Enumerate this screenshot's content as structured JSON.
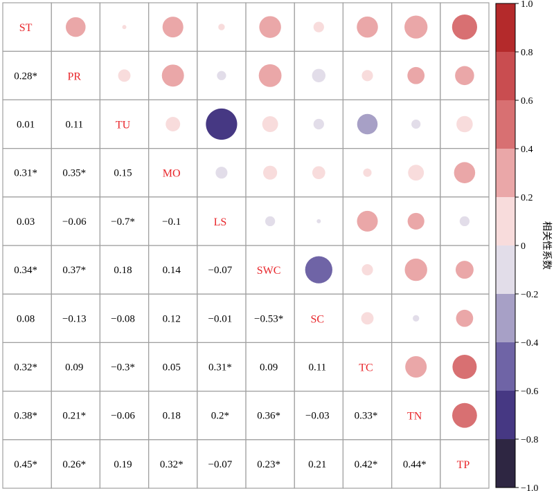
{
  "chart_data": {
    "type": "heatmap",
    "variables": [
      "ST",
      "PR",
      "TU",
      "MO",
      "LS",
      "SWC",
      "SC",
      "TC",
      "TN",
      "TP"
    ],
    "lower_labels": [
      [],
      [
        "0.28*"
      ],
      [
        "0.01",
        "0.11"
      ],
      [
        "0.31*",
        "0.35*",
        "0.15"
      ],
      [
        "0.03",
        "−0.06",
        "−0.7*",
        "−0.1"
      ],
      [
        "0.34*",
        "0.37*",
        "0.18",
        "0.14",
        "−0.07"
      ],
      [
        "0.08",
        "−0.13",
        "−0.08",
        "0.12",
        "−0.01",
        "−0.53*"
      ],
      [
        "0.32*",
        "0.09",
        "−0.3*",
        "0.05",
        "0.31*",
        "0.09",
        "0.11"
      ],
      [
        "0.38*",
        "0.21*",
        "−0.06",
        "0.18",
        "0.2*",
        "0.36*",
        "−0.03",
        "0.33*"
      ],
      [
        "0.45*",
        "0.26*",
        "0.19",
        "0.32*",
        "−0.07",
        "0.23*",
        "0.21",
        "0.42*",
        "0.44*"
      ]
    ],
    "matrix": [
      [
        1,
        0.28,
        0.01,
        0.31,
        0.03,
        0.34,
        0.08,
        0.32,
        0.38,
        0.45
      ],
      [
        0.28,
        1,
        0.11,
        0.35,
        -0.06,
        0.37,
        -0.13,
        0.09,
        0.21,
        0.26
      ],
      [
        0.01,
        0.11,
        1,
        0.15,
        -0.7,
        0.18,
        -0.08,
        -0.3,
        -0.06,
        0.19
      ],
      [
        0.31,
        0.35,
        0.15,
        1,
        -0.1,
        0.14,
        0.12,
        0.05,
        0.18,
        0.32
      ],
      [
        0.03,
        -0.06,
        -0.7,
        -0.1,
        1,
        -0.07,
        -0.01,
        0.31,
        0.2,
        -0.07
      ],
      [
        0.34,
        0.37,
        0.18,
        0.14,
        -0.07,
        1,
        -0.53,
        0.09,
        0.36,
        0.23
      ],
      [
        0.08,
        -0.13,
        -0.08,
        0.12,
        -0.01,
        -0.53,
        1,
        0.11,
        -0.03,
        0.21
      ],
      [
        0.32,
        0.09,
        -0.3,
        0.05,
        0.31,
        0.09,
        0.11,
        1,
        0.33,
        0.42
      ],
      [
        0.38,
        0.21,
        -0.06,
        0.18,
        0.2,
        0.36,
        -0.03,
        0.33,
        1,
        0.44
      ],
      [
        0.45,
        0.26,
        0.19,
        0.32,
        -0.07,
        0.23,
        0.21,
        0.42,
        0.44,
        1
      ]
    ],
    "colorbar": {
      "label": "相关性系数",
      "range": [
        -1.0,
        1.0
      ],
      "ticks": [
        "1.0",
        "0.8",
        "0.6",
        "0.4",
        "0.2",
        "0",
        "−0.2",
        "−0.4",
        "−0.6",
        "−0.8",
        "−1.0"
      ],
      "bins": [
        {
          "from": 0.8,
          "to": 1.0,
          "color": "#b42a2b"
        },
        {
          "from": 0.6,
          "to": 0.8,
          "color": "#c94d50"
        },
        {
          "from": 0.4,
          "to": 0.6,
          "color": "#d87072"
        },
        {
          "from": 0.2,
          "to": 0.4,
          "color": "#eaa7a8"
        },
        {
          "from": 0.0,
          "to": 0.2,
          "color": "#f8dcdc"
        },
        {
          "from": -0.2,
          "to": 0.0,
          "color": "#e2dde9"
        },
        {
          "from": -0.4,
          "to": -0.2,
          "color": "#a7a0c6"
        },
        {
          "from": -0.6,
          "to": -0.4,
          "color": "#6f64a6"
        },
        {
          "from": -0.8,
          "to": -0.6,
          "color": "#463883"
        },
        {
          "from": -1.0,
          "to": -0.8,
          "color": "#2e2642"
        }
      ]
    },
    "diagonal_label_color": "#e8252a",
    "grid": true
  }
}
